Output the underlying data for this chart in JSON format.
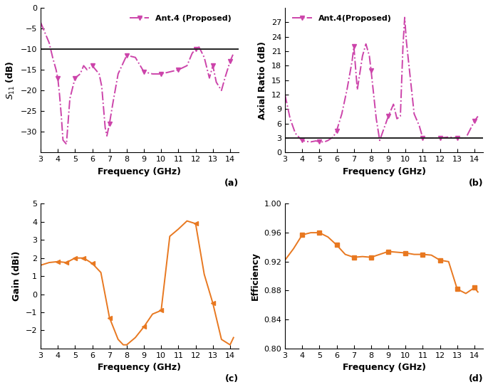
{
  "s11_freq": [
    3.0,
    3.2,
    3.5,
    3.7,
    3.9,
    4.0,
    4.1,
    4.2,
    4.3,
    4.5,
    4.7,
    5.0,
    5.3,
    5.5,
    5.7,
    6.0,
    6.2,
    6.4,
    6.55,
    6.65,
    6.75,
    6.85,
    7.0,
    7.2,
    7.5,
    8.0,
    8.5,
    9.0,
    9.5,
    10.0,
    10.5,
    11.0,
    11.5,
    11.8,
    12.0,
    12.2,
    12.5,
    12.8,
    13.0,
    13.2,
    13.5,
    13.7,
    14.0,
    14.2
  ],
  "s11_vals": [
    -3.5,
    -5.5,
    -8.5,
    -12,
    -15,
    -17,
    -21,
    -26,
    -32,
    -33,
    -22,
    -17,
    -16,
    -14,
    -15,
    -14,
    -15,
    -16,
    -19,
    -24,
    -29,
    -31,
    -28,
    -23,
    -16,
    -11.5,
    -12,
    -15.5,
    -16,
    -16,
    -15.5,
    -15,
    -14,
    -11,
    -10,
    -9.5,
    -12,
    -17,
    -14,
    -18,
    -20,
    -17,
    -13,
    -11
  ],
  "s11_ref_line": -10,
  "s11_xlim": [
    3,
    14.5
  ],
  "s11_ylim": [
    -35,
    0
  ],
  "s11_yticks": [
    0,
    -5,
    -10,
    -15,
    -20,
    -25,
    -30
  ],
  "s11_xticks": [
    3,
    4,
    5,
    6,
    7,
    8,
    9,
    10,
    11,
    12,
    13,
    14
  ],
  "s11_xlabel": "Frequency (GHz)",
  "s11_ylabel": "$S_{11}$ (dB)",
  "s11_legend": "Ant.4 (Proposed)",
  "s11_label": "(a)",
  "ar_freq": [
    3.0,
    3.3,
    3.6,
    3.9,
    4.0,
    4.2,
    4.5,
    4.8,
    5.0,
    5.3,
    5.5,
    5.8,
    6.0,
    6.3,
    6.6,
    6.9,
    7.0,
    7.2,
    7.5,
    7.7,
    7.9,
    8.0,
    8.3,
    8.5,
    9.0,
    9.3,
    9.5,
    9.7,
    9.85,
    9.95,
    10.05,
    10.2,
    10.5,
    10.8,
    11.0,
    11.5,
    12.0,
    12.5,
    13.0,
    13.5,
    14.0,
    14.2
  ],
  "ar_vals": [
    12,
    7,
    4,
    2.8,
    2.5,
    2.3,
    2.2,
    2.4,
    2.2,
    2.2,
    2.5,
    3.2,
    4.5,
    8,
    13,
    19,
    22,
    13,
    20,
    22.5,
    20,
    17,
    7,
    2.5,
    7.5,
    10,
    7,
    7.5,
    22,
    28,
    23,
    18,
    8,
    5.5,
    3.0,
    3.0,
    3.0,
    3.2,
    3.0,
    3.0,
    6.5,
    7.5
  ],
  "ar_ref_line": 3,
  "ar_xlim": [
    3,
    14.5
  ],
  "ar_ylim": [
    0,
    30
  ],
  "ar_yticks": [
    0,
    3,
    6,
    9,
    12,
    15,
    18,
    21,
    24,
    27
  ],
  "ar_xticks": [
    3,
    4,
    5,
    6,
    7,
    8,
    9,
    10,
    11,
    12,
    13,
    14
  ],
  "ar_xlabel": "Frequency (GHz)",
  "ar_ylabel": "Axial Ratio (dB)",
  "ar_legend": "Ant.4(Proposed)",
  "ar_label": "(b)",
  "gain_freq": [
    3.0,
    3.5,
    4.0,
    4.5,
    5.0,
    5.5,
    6.0,
    6.5,
    7.0,
    7.5,
    7.8,
    8.0,
    8.5,
    9.0,
    9.5,
    10.0,
    10.5,
    11.0,
    11.5,
    12.0,
    12.5,
    13.0,
    13.5,
    14.0,
    14.2
  ],
  "gain_vals": [
    1.6,
    1.75,
    1.8,
    1.75,
    2.0,
    2.0,
    1.7,
    1.2,
    -1.3,
    -2.5,
    -2.8,
    -2.8,
    -2.4,
    -1.8,
    -1.1,
    -0.9,
    3.2,
    3.6,
    4.05,
    3.9,
    1.1,
    -0.5,
    -2.5,
    -2.8,
    -2.4
  ],
  "gain_xlim": [
    3,
    14.5
  ],
  "gain_ylim": [
    -3,
    5
  ],
  "gain_yticks": [
    -2,
    -1,
    0,
    1,
    2,
    3,
    4,
    5
  ],
  "gain_xticks": [
    3,
    4,
    5,
    6,
    7,
    8,
    9,
    10,
    11,
    12,
    13,
    14
  ],
  "gain_xlabel": "Frequency (GHz)",
  "gain_ylabel": "Gain (dBi)",
  "gain_label": "(c)",
  "gain_marker_freq": [
    4.0,
    4.5,
    5.0,
    5.5,
    6.0,
    7.0,
    9.0,
    10.0,
    12.0,
    13.0
  ],
  "eff_freq": [
    3.0,
    3.5,
    4.0,
    4.5,
    5.0,
    5.5,
    6.0,
    6.5,
    7.0,
    7.5,
    8.0,
    8.5,
    9.0,
    9.5,
    10.0,
    10.5,
    11.0,
    11.5,
    12.0,
    12.5,
    13.0,
    13.5,
    14.0,
    14.2
  ],
  "eff_vals": [
    0.922,
    0.938,
    0.957,
    0.96,
    0.96,
    0.954,
    0.943,
    0.93,
    0.926,
    0.927,
    0.926,
    0.93,
    0.934,
    0.933,
    0.932,
    0.93,
    0.93,
    0.929,
    0.922,
    0.92,
    0.882,
    0.876,
    0.884,
    0.878
  ],
  "eff_xlim": [
    3,
    14.5
  ],
  "eff_ylim": [
    0.8,
    1.0
  ],
  "eff_yticks": [
    0.8,
    0.84,
    0.88,
    0.92,
    0.96,
    1.0
  ],
  "eff_xticks": [
    3,
    4,
    5,
    6,
    7,
    8,
    9,
    10,
    11,
    12,
    13,
    14
  ],
  "eff_xlabel": "Frequency (GHz)",
  "eff_ylabel": "Efficiency",
  "eff_label": "(d)",
  "eff_marker_freq": [
    4.0,
    5.0,
    6.0,
    7.0,
    8.0,
    9.0,
    10.0,
    11.0,
    12.0,
    13.0,
    14.0
  ],
  "purple_color": "#CC44AA",
  "orange_color": "#E87820",
  "ref_line_color": "#222222",
  "background": "#ffffff"
}
